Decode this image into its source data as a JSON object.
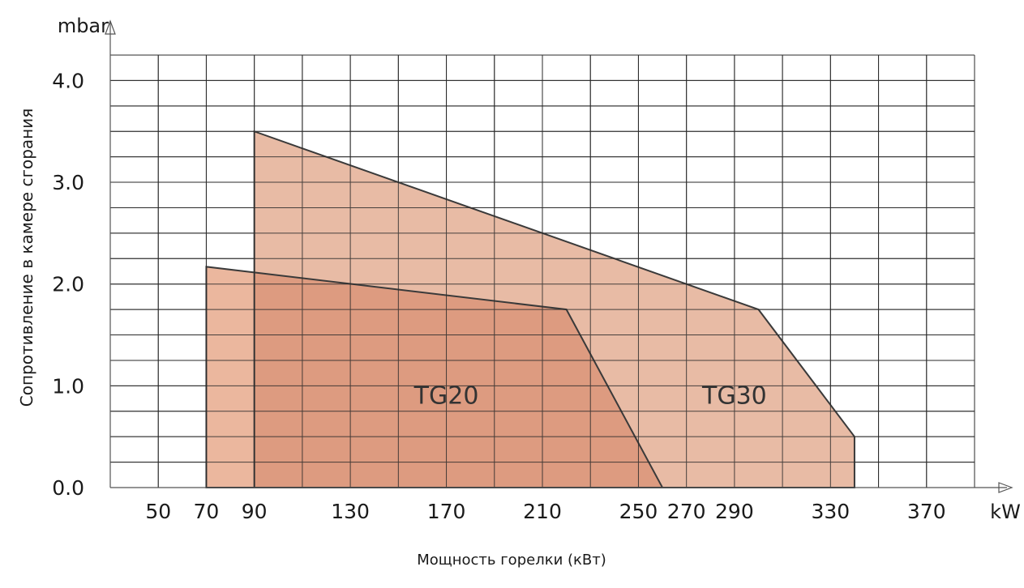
{
  "chart_data": {
    "type": "area",
    "x_unit": "kW",
    "y_unit": "mbar",
    "xlabel": "Мощность горелки (кВт)",
    "ylabel": "Сопротивление в камере сгорания",
    "x_ticks": [
      "50",
      "70",
      "90",
      "130",
      "170",
      "210",
      "250",
      "270",
      "290",
      "330",
      "370"
    ],
    "x_tick_values": [
      50,
      70,
      90,
      130,
      170,
      210,
      250,
      270,
      290,
      330,
      370
    ],
    "y_ticks": [
      "0.0",
      "1.0",
      "2.0",
      "3.0",
      "4.0"
    ],
    "y_tick_values": [
      0,
      1,
      2,
      3,
      4
    ],
    "xlim": [
      30,
      390
    ],
    "ylim": [
      0,
      4.25
    ],
    "grid": true,
    "series": [
      {
        "name": "TG30",
        "color": "#e8bba5",
        "points": [
          [
            90,
            0
          ],
          [
            90,
            3.5
          ],
          [
            300,
            1.75
          ],
          [
            340,
            0.5
          ],
          [
            340,
            0
          ]
        ]
      },
      {
        "name": "TG20",
        "color": "#ebb79e",
        "points": [
          [
            70,
            0
          ],
          [
            70,
            2.17
          ],
          [
            220,
            1.75
          ],
          [
            260,
            0
          ]
        ]
      }
    ],
    "overlap_color": "#dd9b80",
    "outline_color": "#3a3a3a"
  }
}
